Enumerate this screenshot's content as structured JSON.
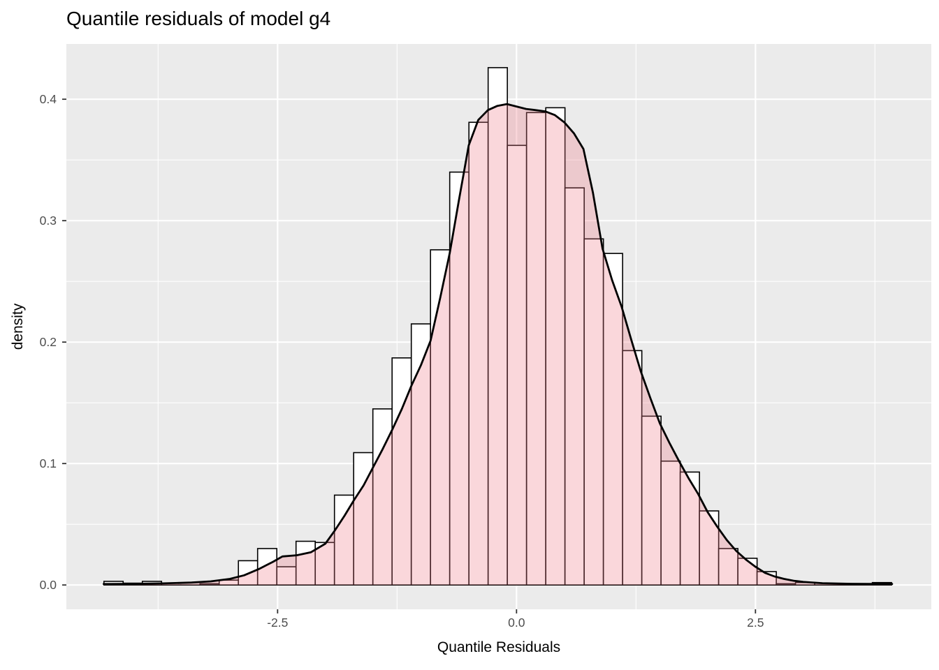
{
  "chart_data": {
    "type": "histogram+density",
    "title": "Quantile residuals of model g4",
    "xlabel": "Quantile Residuals",
    "ylabel": "density",
    "xlim": [
      -4.71,
      4.34
    ],
    "ylim": [
      -0.02,
      0.4455
    ],
    "grid": {
      "major": "on",
      "minor": "on",
      "legend": "none"
    },
    "x_ticks": [
      {
        "value": -2.5,
        "label": "-2.5"
      },
      {
        "value": 0.0,
        "label": "0.0"
      },
      {
        "value": 2.5,
        "label": "2.5"
      }
    ],
    "y_ticks": [
      {
        "value": 0.0,
        "label": "0.0"
      },
      {
        "value": 0.1,
        "label": "0.1"
      },
      {
        "value": 0.2,
        "label": "0.2"
      },
      {
        "value": 0.3,
        "label": "0.3"
      },
      {
        "value": 0.4,
        "label": "0.4"
      }
    ],
    "x_minor": [
      -3.75,
      -1.25,
      1.25,
      3.75
    ],
    "y_minor": [
      0.05,
      0.15,
      0.25,
      0.35
    ],
    "n_bins": 41,
    "bin_width": 0.201,
    "histogram_bins": [
      {
        "x": -4.317,
        "h": 0.003
      },
      {
        "x": -4.116,
        "h": 0.0015
      },
      {
        "x": -3.915,
        "h": 0.003
      },
      {
        "x": -3.714,
        "h": 0.0
      },
      {
        "x": -3.513,
        "h": 0.0
      },
      {
        "x": -3.312,
        "h": 0.001
      },
      {
        "x": -3.111,
        "h": 0.004
      },
      {
        "x": -2.91,
        "h": 0.02
      },
      {
        "x": -2.709,
        "h": 0.03
      },
      {
        "x": -2.508,
        "h": 0.015
      },
      {
        "x": -2.307,
        "h": 0.036
      },
      {
        "x": -2.106,
        "h": 0.035
      },
      {
        "x": -1.905,
        "h": 0.074
      },
      {
        "x": -1.704,
        "h": 0.109
      },
      {
        "x": -1.503,
        "h": 0.145
      },
      {
        "x": -1.302,
        "h": 0.187
      },
      {
        "x": -1.101,
        "h": 0.215
      },
      {
        "x": -0.9,
        "h": 0.276
      },
      {
        "x": -0.699,
        "h": 0.34
      },
      {
        "x": -0.498,
        "h": 0.381
      },
      {
        "x": -0.297,
        "h": 0.426
      },
      {
        "x": -0.096,
        "h": 0.362
      },
      {
        "x": 0.105,
        "h": 0.389
      },
      {
        "x": 0.306,
        "h": 0.393
      },
      {
        "x": 0.507,
        "h": 0.327
      },
      {
        "x": 0.708,
        "h": 0.285
      },
      {
        "x": 0.909,
        "h": 0.273
      },
      {
        "x": 1.11,
        "h": 0.193
      },
      {
        "x": 1.311,
        "h": 0.139
      },
      {
        "x": 1.512,
        "h": 0.102
      },
      {
        "x": 1.713,
        "h": 0.093
      },
      {
        "x": 1.914,
        "h": 0.061
      },
      {
        "x": 2.115,
        "h": 0.03
      },
      {
        "x": 2.316,
        "h": 0.022
      },
      {
        "x": 2.517,
        "h": 0.011
      },
      {
        "x": 2.718,
        "h": 0.001
      },
      {
        "x": 2.919,
        "h": 0.002
      },
      {
        "x": 3.12,
        "h": 0.0
      },
      {
        "x": 3.321,
        "h": 0.0
      },
      {
        "x": 3.522,
        "h": 0.0
      },
      {
        "x": 3.723,
        "h": 0.002
      }
    ],
    "density_curve": [
      [
        -4.32,
        0.0008
      ],
      [
        -4.0,
        0.001
      ],
      [
        -3.7,
        0.0013
      ],
      [
        -3.4,
        0.002
      ],
      [
        -3.2,
        0.003
      ],
      [
        -3.0,
        0.005
      ],
      [
        -2.85,
        0.008
      ],
      [
        -2.7,
        0.013
      ],
      [
        -2.55,
        0.019
      ],
      [
        -2.45,
        0.0235
      ],
      [
        -2.3,
        0.0245
      ],
      [
        -2.15,
        0.027
      ],
      [
        -2.0,
        0.034
      ],
      [
        -1.9,
        0.045
      ],
      [
        -1.8,
        0.057
      ],
      [
        -1.7,
        0.07
      ],
      [
        -1.6,
        0.082
      ],
      [
        -1.5,
        0.097
      ],
      [
        -1.4,
        0.112
      ],
      [
        -1.3,
        0.128
      ],
      [
        -1.2,
        0.145
      ],
      [
        -1.1,
        0.164
      ],
      [
        -1.0,
        0.181
      ],
      [
        -0.9,
        0.201
      ],
      [
        -0.8,
        0.236
      ],
      [
        -0.7,
        0.273
      ],
      [
        -0.6,
        0.318
      ],
      [
        -0.5,
        0.362
      ],
      [
        -0.4,
        0.383
      ],
      [
        -0.3,
        0.391
      ],
      [
        -0.2,
        0.3945
      ],
      [
        -0.1,
        0.396
      ],
      [
        0.0,
        0.394
      ],
      [
        0.1,
        0.392
      ],
      [
        0.2,
        0.391
      ],
      [
        0.3,
        0.39
      ],
      [
        0.4,
        0.387
      ],
      [
        0.5,
        0.381
      ],
      [
        0.6,
        0.372
      ],
      [
        0.7,
        0.359
      ],
      [
        0.8,
        0.323
      ],
      [
        0.9,
        0.277
      ],
      [
        1.0,
        0.251
      ],
      [
        1.1,
        0.229
      ],
      [
        1.2,
        0.202
      ],
      [
        1.3,
        0.176
      ],
      [
        1.4,
        0.154
      ],
      [
        1.5,
        0.133
      ],
      [
        1.6,
        0.117
      ],
      [
        1.7,
        0.102
      ],
      [
        1.8,
        0.088
      ],
      [
        1.9,
        0.075
      ],
      [
        2.0,
        0.06
      ],
      [
        2.1,
        0.048
      ],
      [
        2.2,
        0.037
      ],
      [
        2.3,
        0.028
      ],
      [
        2.4,
        0.021
      ],
      [
        2.5,
        0.015
      ],
      [
        2.6,
        0.01
      ],
      [
        2.7,
        0.007
      ],
      [
        2.8,
        0.005
      ],
      [
        2.9,
        0.0035
      ],
      [
        3.0,
        0.0025
      ],
      [
        3.2,
        0.0015
      ],
      [
        3.5,
        0.001
      ],
      [
        3.93,
        0.0008
      ]
    ]
  },
  "style": {
    "panel_bg": "#EBEBEB",
    "grid_color": "#FFFFFF",
    "bar_fill": "#FFFFFF",
    "bar_stroke": "#000000",
    "density_fill": "rgba(238,121,137,0.30)",
    "density_stroke": "#000000",
    "tick_label_color": "#4D4D4D",
    "tick_mark_color": "#333333",
    "title_color": "#000000"
  }
}
